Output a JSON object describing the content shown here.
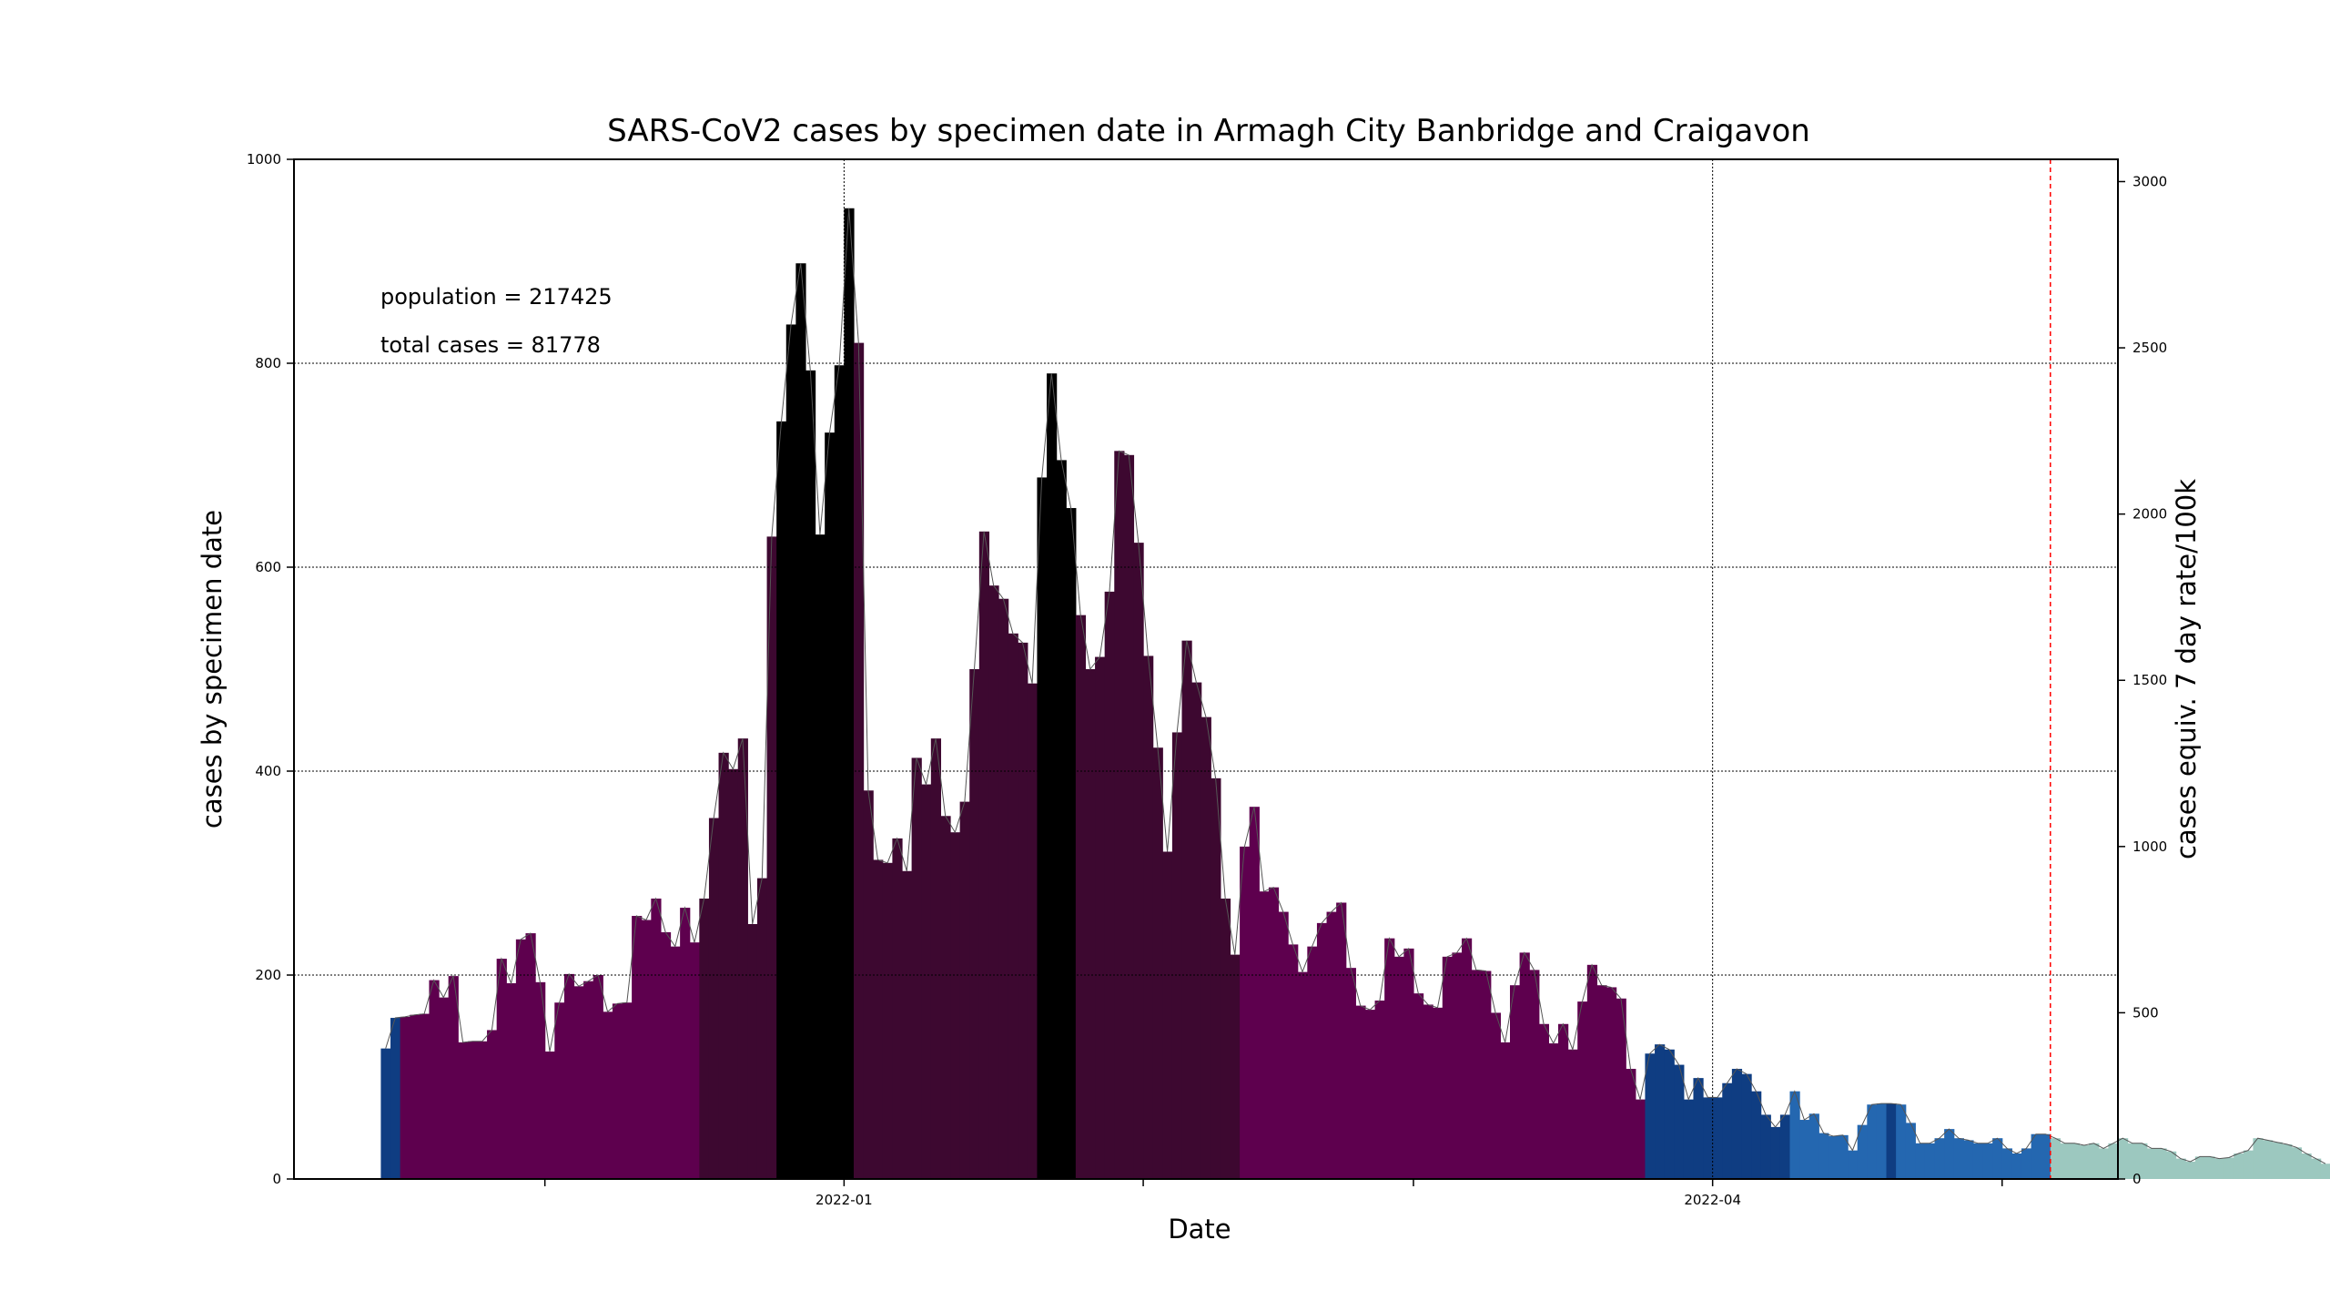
{
  "chart_data": {
    "type": "bar",
    "title": "SARS-CoV2 cases by specimen date in Armagh City Banbridge and Craigavon",
    "xlabel": "Date",
    "ylabel": "cases by specimen date",
    "y2label": "cases equiv. 7 day rate/100k",
    "ylim": [
      0,
      1000
    ],
    "y2lim": [
      0,
      3067
    ],
    "xlim": [
      "2021-11-05",
      "2022-05-13"
    ],
    "x_ticks": [
      {
        "date": "2021-12-01",
        "label": ""
      },
      {
        "date": "2022-01-01",
        "label": "2022-01"
      },
      {
        "date": "2022-02-01",
        "label": ""
      },
      {
        "date": "2022-03-01",
        "label": ""
      },
      {
        "date": "2022-04-01",
        "label": "2022-04"
      },
      {
        "date": "2022-05-01",
        "label": ""
      }
    ],
    "y_ticks": [
      0,
      200,
      400,
      600,
      800,
      1000
    ],
    "y2_ticks": [
      0,
      500,
      1000,
      1500,
      2000,
      2500,
      3000
    ],
    "grid": true,
    "annotations": {
      "population": "population = 217425",
      "total_cases": "total cases = 81778"
    },
    "marker_date": "2022-05-06",
    "marker_color": "#ff0000",
    "start_date": "2021-11-14",
    "values": [
      128,
      158,
      159,
      161,
      162,
      195,
      178,
      199,
      134,
      135,
      135,
      146,
      216,
      192,
      235,
      241,
      193,
      125,
      173,
      201,
      189,
      194,
      200,
      164,
      172,
      173,
      258,
      254,
      275,
      242,
      228,
      266,
      232,
      275,
      354,
      418,
      402,
      432,
      250,
      295,
      630,
      743,
      838,
      898,
      793,
      632,
      732,
      798,
      952,
      820,
      381,
      313,
      310,
      334,
      302,
      413,
      387,
      432,
      356,
      340,
      370,
      500,
      635,
      582,
      569,
      535,
      526,
      486,
      688,
      790,
      705,
      658,
      553,
      500,
      512,
      576,
      714,
      710,
      624,
      513,
      423,
      321,
      438,
      528,
      487,
      453,
      393,
      275,
      220,
      326,
      365,
      282,
      286,
      262,
      230,
      203,
      228,
      251,
      262,
      271,
      207,
      170,
      166,
      175,
      236,
      218,
      226,
      182,
      171,
      168,
      218,
      222,
      236,
      205,
      204,
      163,
      134,
      190,
      222,
      205,
      152,
      133,
      152,
      127,
      174,
      210,
      190,
      188,
      177,
      108,
      78,
      123,
      132,
      127,
      112,
      78,
      99,
      80,
      80,
      94,
      108,
      103,
      86,
      63,
      51,
      63,
      86,
      58,
      64,
      45,
      42,
      43,
      28,
      53,
      73,
      74,
      74,
      73,
      55,
      35,
      35,
      40,
      49,
      40,
      38,
      35,
      35,
      40,
      30,
      25,
      30,
      44,
      44,
      40,
      35,
      35,
      33,
      35,
      30,
      35,
      40,
      35,
      35,
      30,
      30,
      27,
      20,
      17,
      22,
      22,
      20,
      21,
      25,
      28,
      40,
      38,
      36,
      34,
      31,
      25,
      20,
      15
    ]
  },
  "colors": {
    "purple": "#5e004e",
    "dark_purple": "#3d0830",
    "black": "#000000",
    "navy": "#0f3d82",
    "blue": "#2467b0",
    "green": "#2f8a6e",
    "teal_light": "#9cc8bf",
    "line": "#666666",
    "grid": "#000000"
  }
}
